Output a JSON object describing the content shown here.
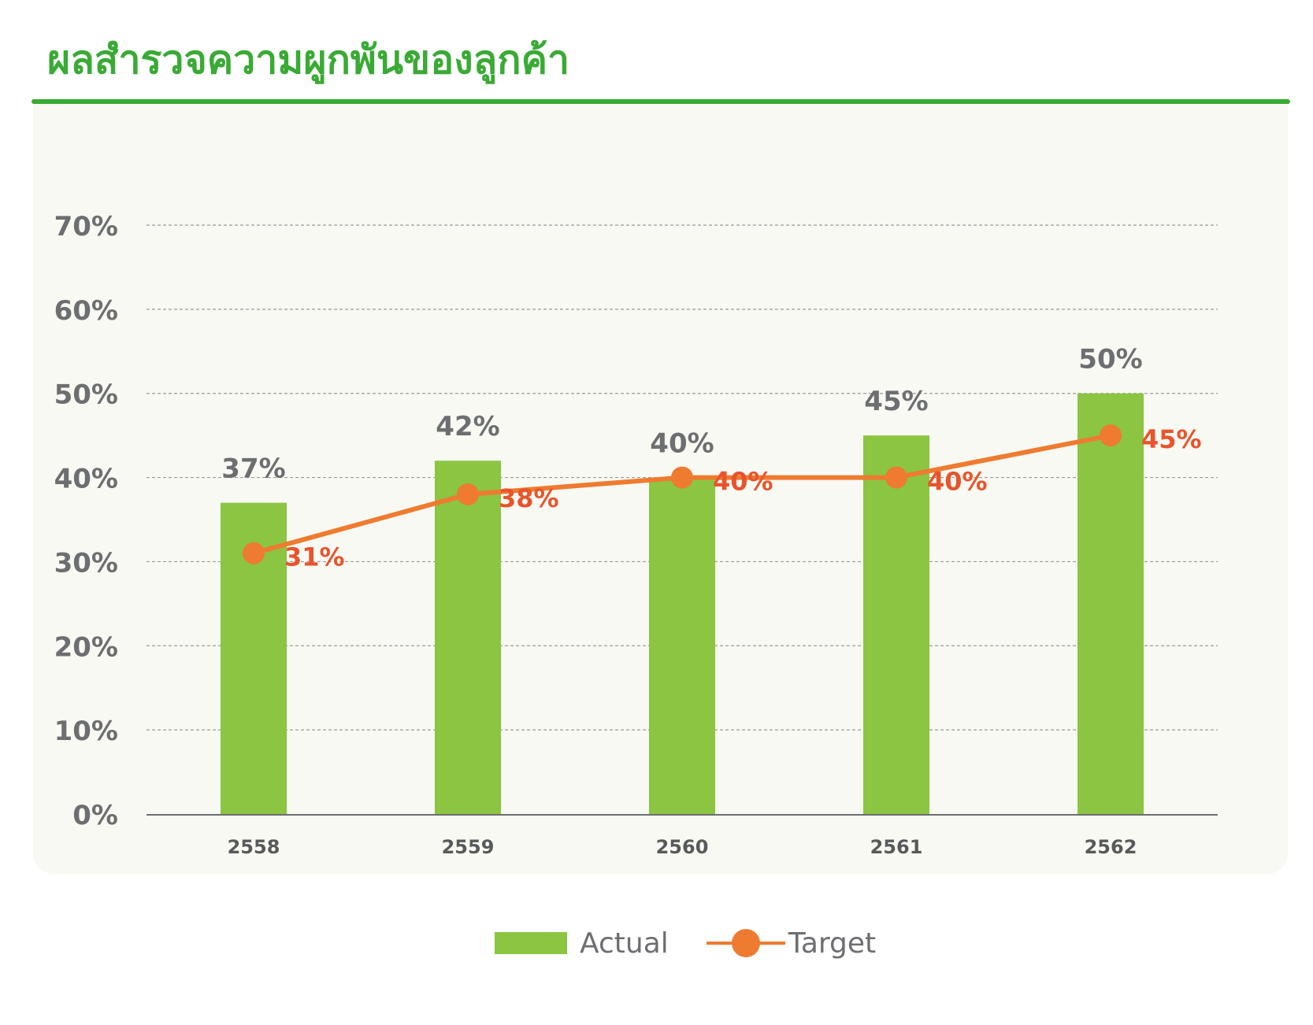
{
  "title": "ผลสำรวจความผูกพันของลูกค้า",
  "colors": {
    "title": "#3aaa35",
    "actual": "#8bc541",
    "target": "#ee7b30",
    "target_label": "#e8542c",
    "axis_text": "#6d6e71",
    "grid": "#9a9a9a"
  },
  "legend": {
    "actual_label": "Actual",
    "target_label": "Target"
  },
  "chart_data": {
    "type": "bar",
    "categories": [
      "2558",
      "2559",
      "2560",
      "2561",
      "2562"
    ],
    "series": [
      {
        "name": "Actual",
        "type": "bar",
        "values": [
          37,
          42,
          40,
          45,
          50
        ],
        "labels": [
          "37%",
          "42%",
          "40%",
          "45%",
          "50%"
        ]
      },
      {
        "name": "Target",
        "type": "line",
        "values": [
          31,
          38,
          40,
          40,
          45
        ],
        "labels": [
          "31%",
          "38%",
          "40%",
          "40%",
          "45%"
        ]
      }
    ],
    "ylim": [
      0,
      70
    ],
    "yticks": [
      0,
      10,
      20,
      30,
      40,
      50,
      60,
      70
    ],
    "ytick_labels": [
      "0%",
      "10%",
      "20%",
      "30%",
      "40%",
      "50%",
      "60%",
      "70%"
    ],
    "grid": true,
    "legend_position": "bottom"
  }
}
